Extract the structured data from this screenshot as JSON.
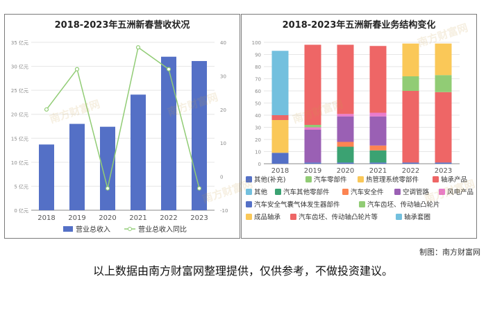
{
  "watermark": "南方财富网",
  "credit": "制图：南方财富网",
  "disclaimer": "以上数据由南方财富网整理提供，仅供参考，不做投资建议。",
  "chart_data": [
    {
      "type": "bar",
      "title": "2018-2023年五洲新春营收状况",
      "categories": [
        "2018",
        "2019",
        "2020",
        "2021",
        "2022",
        "2023"
      ],
      "series": [
        {
          "name": "营业总收入",
          "kind": "bar",
          "axis": "left",
          "color": "#5470c6",
          "values": [
            13.7,
            18.0,
            17.4,
            24.1,
            32.0,
            31.1
          ]
        },
        {
          "name": "营业总收入同比",
          "kind": "line",
          "axis": "right",
          "color": "#91cc75",
          "values": [
            20,
            32,
            -3.5,
            38.5,
            32,
            -3.5
          ]
        }
      ],
      "y_left": {
        "min": 0,
        "max": 35,
        "step": 5,
        "unit": "亿元"
      },
      "y_right": {
        "min": -10,
        "max": 40,
        "step": 10
      },
      "legend": "bottom"
    },
    {
      "type": "bar",
      "stacked": true,
      "title": "2018-2023年五洲新春业务结构变化",
      "categories": [
        "2018",
        "2019",
        "2020",
        "2021",
        "2022",
        "2023"
      ],
      "y_axis": {
        "min": 0,
        "max": 100,
        "step": 10
      },
      "legend": "bottom",
      "series": [
        {
          "name": "其他(补充)",
          "color": "#5470c6",
          "values": [
            2,
            1,
            1,
            1,
            1,
            1
          ]
        },
        {
          "name": "汽车零部件",
          "color": "#91cc75",
          "values": [
            0,
            0,
            0,
            0,
            0,
            0
          ]
        },
        {
          "name": "热管理系统零部件",
          "color": "#fac858",
          "values": [
            0,
            0,
            0,
            0,
            0,
            0
          ]
        },
        {
          "name": "轴承产品",
          "color": "#ee6666",
          "values": [
            0,
            0,
            0,
            0,
            59,
            58
          ]
        },
        {
          "name": "其他",
          "color": "#73c0de",
          "values": [
            0,
            0,
            0,
            0,
            0,
            0
          ]
        },
        {
          "name": "汽车其他零部件",
          "color": "#3ba272",
          "values": [
            0,
            0,
            13,
            10,
            0,
            0
          ]
        },
        {
          "name": "汽车安全件",
          "color": "#fc8452",
          "values": [
            0,
            0,
            4,
            4,
            0,
            0
          ]
        },
        {
          "name": "空调管路",
          "color": "#9a60b4",
          "values": [
            0,
            27,
            21,
            24,
            0,
            0
          ]
        },
        {
          "name": "风电产品",
          "color": "#ea7ccc",
          "values": [
            0,
            2,
            2,
            3,
            0,
            0
          ]
        },
        {
          "name": "汽车安全气囊气体发生器部件",
          "color": "#5470c6",
          "values": [
            7,
            0,
            0,
            0,
            0,
            0
          ]
        },
        {
          "name": "汽车齿坯、传动轴凸轮片",
          "color": "#91cc75",
          "values": [
            0,
            2,
            0,
            0,
            12,
            14
          ]
        },
        {
          "name": "成品轴承",
          "color": "#fac858",
          "values": [
            27,
            0,
            0,
            0,
            27,
            26
          ]
        },
        {
          "name": "汽车齿坯、传动轴凸轮片等",
          "color": "#ee6666",
          "values": [
            4,
            66,
            57,
            55,
            0,
            0
          ]
        },
        {
          "name": "轴承套圈",
          "color": "#73c0de",
          "values": [
            53,
            0,
            0,
            0,
            0,
            0
          ]
        }
      ]
    }
  ]
}
